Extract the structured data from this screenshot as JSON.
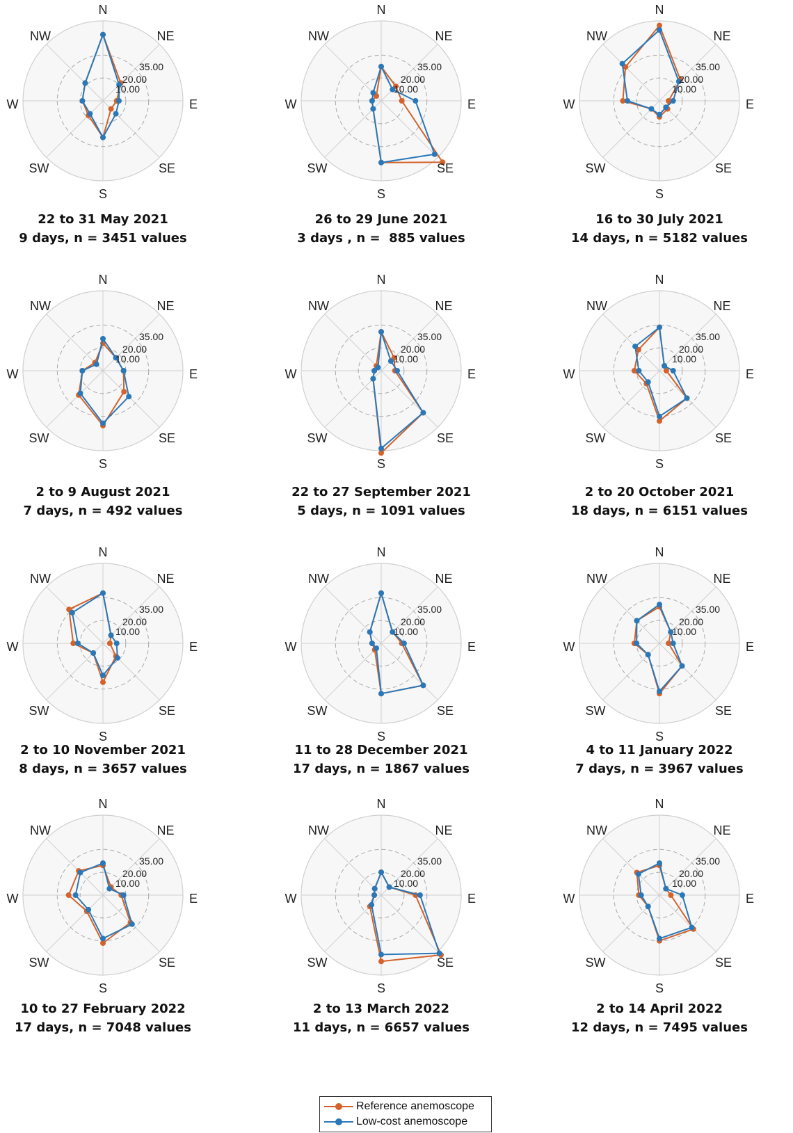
{
  "colors": {
    "reference": "#d4622a",
    "lowcost": "#2a78b8",
    "grid_solid": "#cfcfcf",
    "grid_dashed": "#a8a8a8",
    "background": "#f7f7f7"
  },
  "directions": [
    "N",
    "NE",
    "E",
    "SE",
    "S",
    "SW",
    "W",
    "NW"
  ],
  "legend": [
    {
      "name": "Reference anemoscope",
      "color": "#d4622a"
    },
    {
      "name": "Low-cost anemoscope",
      "color": "#2a78b8"
    }
  ],
  "chart_data": [
    {
      "type": "radar",
      "rmax": 35,
      "ticks": [
        "10.00",
        "20.00",
        "35.00"
      ],
      "caption": [
        "22 to 31 May 2021",
        "9 days, n = 3451 values"
      ],
      "series": [
        {
          "name": "Reference anemoscope",
          "values": [
            29,
            11,
            6,
            5,
            16,
            9,
            9,
            11
          ]
        },
        {
          "name": "Low-cost anemoscope",
          "values": [
            29,
            10,
            7,
            8,
            16,
            8,
            9,
            11
          ]
        }
      ]
    },
    {
      "type": "radar",
      "rmax": 35,
      "ticks": [
        "10.00",
        "20.00",
        "35.00"
      ],
      "caption": [
        "26 to 29 June 2021",
        "3 days , n =  885 values"
      ],
      "series": [
        {
          "name": "Reference anemoscope",
          "values": [
            15,
            9,
            9,
            38,
            27,
            5,
            4,
            3
          ]
        },
        {
          "name": "Low-cost anemoscope",
          "values": [
            15,
            7,
            15,
            33,
            27,
            5,
            4,
            5
          ]
        }
      ]
    },
    {
      "type": "radar",
      "rmax": 35,
      "ticks": [
        "10.00",
        "20.00",
        "35.00"
      ],
      "caption": [
        "16 to 30 July 2021",
        "14 days, n = 5182 values"
      ],
      "series": [
        {
          "name": "Reference anemoscope",
          "values": [
            33,
            13,
            4,
            5,
            7,
            5,
            16,
            21
          ]
        },
        {
          "name": "Low-cost anemoscope",
          "values": [
            31,
            12,
            6,
            4,
            6,
            5,
            14,
            23
          ]
        }
      ]
    },
    {
      "type": "radar",
      "rmax": 35,
      "ticks": [
        "10.00",
        "20.00",
        "35.00"
      ],
      "caption": [
        "2 to 9 August 2021",
        "7 days, n = 492 values"
      ],
      "series": [
        {
          "name": "Reference anemoscope",
          "values": [
            12,
            8,
            9,
            13,
            24,
            15,
            9,
            5
          ]
        },
        {
          "name": "Low-cost anemoscope",
          "values": [
            14,
            8,
            9,
            16,
            23,
            14,
            9,
            4
          ]
        }
      ]
    },
    {
      "type": "radar",
      "rmax": 35,
      "ticks": [
        "10.00",
        "20.00",
        "35.00"
      ],
      "caption": [
        "22 to 27 September 2021",
        "5 days, n = 1091 values"
      ],
      "series": [
        {
          "name": "Reference anemoscope",
          "values": [
            17,
            8,
            6,
            26,
            36,
            5,
            3,
            3
          ]
        },
        {
          "name": "Low-cost anemoscope",
          "values": [
            17,
            6,
            7,
            26,
            34,
            5,
            3,
            2
          ]
        }
      ]
    },
    {
      "type": "radar",
      "rmax": 35,
      "ticks": [
        "10.00",
        "20.00",
        "35.00"
      ],
      "caption": [
        "2 to 20 October 2021",
        "18 days, n = 6151 values"
      ],
      "series": [
        {
          "name": "Reference anemoscope",
          "values": [
            19,
            3,
            3,
            17,
            22,
            8,
            11,
            13
          ]
        },
        {
          "name": "Low-cost anemoscope",
          "values": [
            19,
            3,
            6,
            17,
            20,
            7,
            9,
            15
          ]
        }
      ]
    },
    {
      "type": "radar",
      "rmax": 35,
      "ticks": [
        "10.00",
        "20.00",
        "35.00"
      ],
      "caption": [
        "2 to 10 November 2021",
        "8 days, n = 3657 values"
      ],
      "series": [
        {
          "name": "Reference anemoscope",
          "values": [
            22,
            5,
            3,
            8,
            17,
            6,
            13,
            21
          ]
        },
        {
          "name": "Low-cost anemoscope",
          "values": [
            22,
            5,
            6,
            9,
            14,
            6,
            11,
            19
          ]
        }
      ]
    },
    {
      "type": "radar",
      "rmax": 35,
      "ticks": [
        "10.00",
        "20.00",
        "35.00"
      ],
      "caption": [
        "11 to 28 December 2021",
        "17 days, n = 1867 values"
      ],
      "series": [
        {
          "name": "Reference anemoscope",
          "values": [
            22,
            7,
            9,
            26,
            22,
            4,
            4,
            7
          ]
        },
        {
          "name": "Low-cost anemoscope",
          "values": [
            22,
            7,
            10,
            26,
            22,
            3,
            4,
            7
          ]
        }
      ]
    },
    {
      "type": "radar",
      "rmax": 35,
      "ticks": [
        "10.00",
        "20.00",
        "35.00"
      ],
      "caption": [
        "4 to 11 January 2022",
        "7 days, n = 3967 values"
      ],
      "series": [
        {
          "name": "Reference anemoscope",
          "values": [
            16,
            7,
            4,
            14,
            22,
            7,
            11,
            14
          ]
        },
        {
          "name": "Low-cost anemoscope",
          "values": [
            17,
            7,
            6,
            14,
            21,
            7,
            10,
            14
          ]
        }
      ]
    },
    {
      "type": "radar",
      "rmax": 35,
      "ticks": [
        "10.00",
        "20.00",
        "35.00"
      ],
      "caption": [
        "10 to 27 February 2022",
        "17 days, n = 7048 values"
      ],
      "series": [
        {
          "name": "Reference anemoscope",
          "values": [
            13,
            5,
            8,
            17,
            21,
            10,
            15,
            15
          ]
        },
        {
          "name": "Low-cost anemoscope",
          "values": [
            14,
            4,
            9,
            18,
            19,
            9,
            12,
            14
          ]
        }
      ]
    },
    {
      "type": "radar",
      "rmax": 35,
      "ticks": [
        "10.00",
        "20.00",
        "35.00"
      ],
      "caption": [
        "2 to 13 March 2022",
        "11 days, n = 6657 values"
      ],
      "series": [
        {
          "name": "Reference anemoscope",
          "values": [
            10,
            5,
            15,
            37,
            29,
            7,
            3,
            4
          ]
        },
        {
          "name": "Low-cost anemoscope",
          "values": [
            10,
            5,
            17,
            36,
            26,
            6,
            3,
            4
          ]
        }
      ]
    },
    {
      "type": "radar",
      "rmax": 35,
      "ticks": [
        "10.00",
        "20.00",
        "35.00"
      ],
      "caption": [
        "2 to 14 April 2022",
        "12 days, n = 7495 values"
      ],
      "series": [
        {
          "name": "Reference anemoscope",
          "values": [
            13,
            4,
            5,
            21,
            20,
            7,
            9,
            14
          ]
        },
        {
          "name": "Low-cost anemoscope",
          "values": [
            14,
            4,
            10,
            20,
            19,
            7,
            8,
            13
          ]
        }
      ]
    }
  ]
}
